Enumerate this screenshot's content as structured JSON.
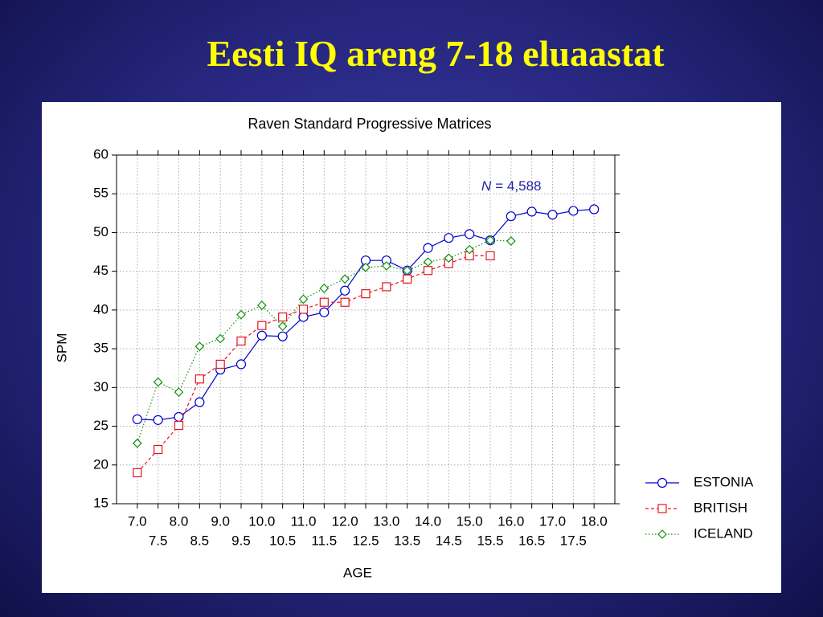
{
  "slide_title": "Eesti IQ areng 7-18 eluaastat",
  "chart_data": {
    "type": "line",
    "title": "Raven Standard Progressive Matrices",
    "xlabel": "AGE",
    "ylabel": "SPM",
    "annotation": {
      "italic": "N",
      "text": "= 4,588"
    },
    "x": [
      7.0,
      7.5,
      8.0,
      8.5,
      9.0,
      9.5,
      10.0,
      10.5,
      11.0,
      11.5,
      12.0,
      12.5,
      13.0,
      13.5,
      14.0,
      14.5,
      15.0,
      15.5,
      16.0,
      16.5,
      17.0,
      17.5,
      18.0
    ],
    "xlim": [
      6.5,
      18.5
    ],
    "xticks": [
      {
        "value": 7,
        "label": "7.0"
      },
      {
        "value": 7.5,
        "label": "7.5"
      },
      {
        "value": 8,
        "label": "8.0"
      },
      {
        "value": 8.5,
        "label": "8.5"
      },
      {
        "value": 9,
        "label": "9.0"
      },
      {
        "value": 9.5,
        "label": "9.5"
      },
      {
        "value": 10,
        "label": "10.0"
      },
      {
        "value": 10.5,
        "label": "10.5"
      },
      {
        "value": 11,
        "label": "11.0"
      },
      {
        "value": 11.5,
        "label": "11.5"
      },
      {
        "value": 12,
        "label": "12.0"
      },
      {
        "value": 12.5,
        "label": "12.5"
      },
      {
        "value": 13,
        "label": "13.0"
      },
      {
        "value": 13.5,
        "label": "13.5"
      },
      {
        "value": 14,
        "label": "14.0"
      },
      {
        "value": 14.5,
        "label": "14.5"
      },
      {
        "value": 15,
        "label": "15.0"
      },
      {
        "value": 15.5,
        "label": "15.5"
      },
      {
        "value": 16,
        "label": "16.0"
      },
      {
        "value": 16.5,
        "label": "16.5"
      },
      {
        "value": 17,
        "label": "17.0"
      },
      {
        "value": 17.5,
        "label": "17.5"
      },
      {
        "value": 18,
        "label": "18.0"
      }
    ],
    "ylim": [
      15,
      60
    ],
    "yticks": [
      15,
      20,
      25,
      30,
      35,
      40,
      45,
      50,
      55,
      60
    ],
    "grid": true,
    "legend": "lower right outside",
    "series": [
      {
        "name": "ESTONIA",
        "color": "#0000cc",
        "marker": "circle",
        "dash": "solid",
        "values": [
          25.9,
          25.8,
          26.2,
          28.1,
          32.3,
          33.0,
          36.7,
          36.6,
          39.1,
          39.7,
          42.5,
          46.4,
          46.4,
          45.1,
          48.0,
          49.3,
          49.8,
          49.0,
          52.1,
          52.7,
          52.3,
          52.8,
          53.0
        ]
      },
      {
        "name": "BRITISH",
        "color": "#e8141e",
        "marker": "square",
        "dash": "dashed",
        "values": [
          19.0,
          22.0,
          25.1,
          31.1,
          33.0,
          36.0,
          38.0,
          39.1,
          40.1,
          41.0,
          41.0,
          42.1,
          43.0,
          44.0,
          45.1,
          46.0,
          47.0,
          47.0,
          null,
          null,
          null,
          null,
          null
        ]
      },
      {
        "name": "ICELAND",
        "color": "#109010",
        "marker": "diamond",
        "dash": "dotted",
        "values": [
          22.8,
          30.7,
          29.4,
          35.3,
          36.3,
          39.4,
          40.6,
          37.9,
          41.4,
          42.8,
          44.0,
          45.5,
          45.7,
          45.1,
          46.2,
          46.7,
          47.8,
          49.0,
          48.9,
          null,
          null,
          null,
          null
        ]
      }
    ]
  }
}
